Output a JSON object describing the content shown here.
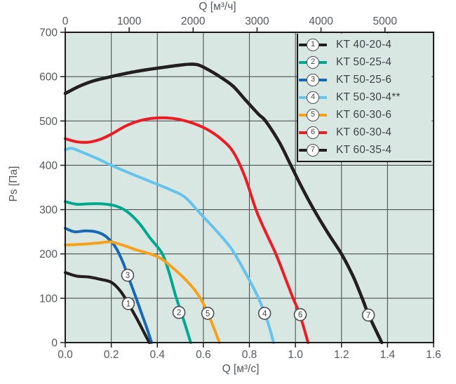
{
  "chart_data": {
    "type": "line",
    "title": "",
    "plot_bg": "#d8e7e2",
    "grid_color": "#4e5254",
    "frame_color": "#1a1a1a",
    "text_color": "#53585d",
    "marker_border": "#4a4f54",
    "grid": true,
    "legend_position": "top-right",
    "top_axis": {
      "label": "Q [м³/ч]",
      "ticks": [
        0,
        1000,
        2000,
        3000,
        4000,
        5000
      ],
      "range": [
        0,
        5760
      ]
    },
    "bottom_axis": {
      "label": "Q [м³/с]",
      "ticks": [
        0,
        0.2,
        0.4,
        0.6,
        0.8,
        1.0,
        1.2,
        1.4,
        1.6
      ],
      "range": [
        0,
        1.6
      ],
      "decimals": 1
    },
    "y_axis": {
      "label": "Ps [Па]",
      "ticks": [
        0,
        100,
        200,
        300,
        400,
        500,
        600,
        700
      ],
      "range": [
        0,
        700
      ]
    },
    "series": [
      {
        "id": "1",
        "name": "KT 40-20-4",
        "color": "#231f20",
        "width": 4.2,
        "marker": [
          0.274,
          88
        ],
        "points": [
          [
            0,
            158
          ],
          [
            0.05,
            150
          ],
          [
            0.1,
            148
          ],
          [
            0.15,
            143
          ],
          [
            0.2,
            136
          ],
          [
            0.24,
            116
          ],
          [
            0.274,
            88
          ],
          [
            0.31,
            55
          ],
          [
            0.34,
            25
          ],
          [
            0.365,
            0
          ]
        ]
      },
      {
        "id": "2",
        "name": "KT 50-25-4",
        "color": "#00a890",
        "width": 4,
        "marker": [
          0.494,
          68
        ],
        "points": [
          [
            0,
            318
          ],
          [
            0.05,
            312
          ],
          [
            0.1,
            313
          ],
          [
            0.16,
            313
          ],
          [
            0.22,
            308
          ],
          [
            0.27,
            295
          ],
          [
            0.32,
            270
          ],
          [
            0.37,
            235
          ],
          [
            0.42,
            202
          ],
          [
            0.45,
            160
          ],
          [
            0.48,
            105
          ],
          [
            0.515,
            50
          ],
          [
            0.545,
            0
          ]
        ]
      },
      {
        "id": "3",
        "name": "KT 50-25-6",
        "color": "#1768b5",
        "width": 4,
        "marker": [
          0.271,
          152
        ],
        "points": [
          [
            0,
            258
          ],
          [
            0.04,
            250
          ],
          [
            0.09,
            252
          ],
          [
            0.14,
            249
          ],
          [
            0.18,
            238
          ],
          [
            0.22,
            214
          ],
          [
            0.25,
            182
          ],
          [
            0.271,
            152
          ],
          [
            0.3,
            112
          ],
          [
            0.33,
            68
          ],
          [
            0.355,
            32
          ],
          [
            0.375,
            0
          ]
        ]
      },
      {
        "id": "4",
        "name": "KT 50-30-4**",
        "color": "#65c3ee",
        "width": 4,
        "marker": [
          0.866,
          66
        ],
        "points": [
          [
            0,
            435
          ],
          [
            0.03,
            438
          ],
          [
            0.08,
            428
          ],
          [
            0.14,
            415
          ],
          [
            0.2,
            400
          ],
          [
            0.3,
            378
          ],
          [
            0.4,
            357
          ],
          [
            0.46,
            344
          ],
          [
            0.52,
            328
          ],
          [
            0.58,
            295
          ],
          [
            0.65,
            256
          ],
          [
            0.72,
            213
          ],
          [
            0.78,
            160
          ],
          [
            0.84,
            100
          ],
          [
            0.88,
            46
          ],
          [
            0.905,
            0
          ]
        ]
      },
      {
        "id": "5",
        "name": "KT 60-30-6",
        "color": "#f6a01d",
        "width": 4,
        "marker": [
          0.619,
          66
        ],
        "points": [
          [
            0,
            220
          ],
          [
            0.08,
            222
          ],
          [
            0.15,
            225
          ],
          [
            0.2,
            227
          ],
          [
            0.26,
            218
          ],
          [
            0.31,
            209
          ],
          [
            0.4,
            194
          ],
          [
            0.46,
            172
          ],
          [
            0.53,
            138
          ],
          [
            0.58,
            106
          ],
          [
            0.62,
            66
          ],
          [
            0.67,
            0
          ]
        ]
      },
      {
        "id": "6",
        "name": "KT 60-30-4",
        "color": "#ec1c24",
        "width": 4,
        "marker": [
          1.021,
          63
        ],
        "points": [
          [
            0,
            460
          ],
          [
            0.05,
            453
          ],
          [
            0.1,
            452
          ],
          [
            0.15,
            458
          ],
          [
            0.2,
            470
          ],
          [
            0.26,
            488
          ],
          [
            0.32,
            500
          ],
          [
            0.38,
            506
          ],
          [
            0.44,
            507
          ],
          [
            0.5,
            503
          ],
          [
            0.56,
            494
          ],
          [
            0.62,
            480
          ],
          [
            0.68,
            458
          ],
          [
            0.73,
            430
          ],
          [
            0.78,
            375
          ],
          [
            0.83,
            298
          ],
          [
            0.87,
            250
          ],
          [
            0.915,
            200
          ],
          [
            0.96,
            140
          ],
          [
            0.99,
            100
          ],
          [
            1.02,
            62
          ],
          [
            1.055,
            0
          ]
        ]
      },
      {
        "id": "7",
        "name": "KT 60-35-4",
        "color": "#231f20",
        "width": 4.6,
        "marker": [
          1.317,
          62
        ],
        "points": [
          [
            0,
            562
          ],
          [
            0.06,
            578
          ],
          [
            0.12,
            590
          ],
          [
            0.2,
            600
          ],
          [
            0.28,
            609
          ],
          [
            0.36,
            616
          ],
          [
            0.44,
            622
          ],
          [
            0.5,
            626
          ],
          [
            0.54,
            628
          ],
          [
            0.58,
            626
          ],
          [
            0.63,
            613
          ],
          [
            0.68,
            597
          ],
          [
            0.73,
            578
          ],
          [
            0.78,
            549
          ],
          [
            0.84,
            515
          ],
          [
            0.87,
            500
          ],
          [
            0.93,
            452
          ],
          [
            0.98,
            400
          ],
          [
            1.03,
            348
          ],
          [
            1.08,
            300
          ],
          [
            1.14,
            248
          ],
          [
            1.2,
            200
          ],
          [
            1.25,
            150
          ],
          [
            1.29,
            100
          ],
          [
            1.32,
            60
          ],
          [
            1.375,
            0
          ]
        ]
      }
    ]
  }
}
